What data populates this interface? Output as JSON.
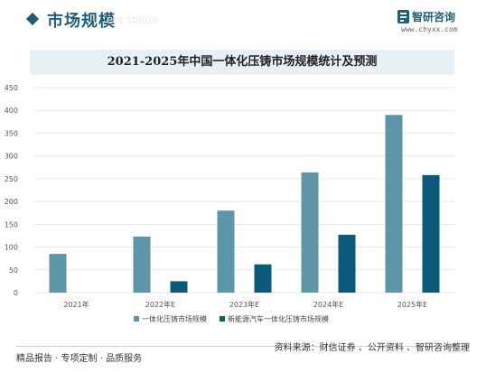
{
  "header": {
    "title": "市场规模",
    "ghost_text": "ent status",
    "logo_name": "智研咨询",
    "logo_url": "www.chyxx.com"
  },
  "colors": {
    "series1": "#5e95a9",
    "series2": "#0c5a7a",
    "title_bar": "#e9f0f3",
    "grid": "#e3e8eb",
    "axis_text": "#555555"
  },
  "chart_data": {
    "type": "bar",
    "title": "2021-2025年中国一体化压铸市场规模统计及预测",
    "categories": [
      "2021年",
      "2022年E",
      "2023年E",
      "2024年E",
      "2025年E"
    ],
    "series": [
      {
        "name": "一体化压铸市场规模",
        "values": [
          85,
          123,
          180,
          264,
          390
        ]
      },
      {
        "name": "新能源汽车一体化压铸市场规模",
        "values": [
          null,
          25,
          62,
          127,
          258
        ]
      }
    ],
    "ylim": [
      0,
      450
    ],
    "yticks": [
      0,
      50,
      100,
      150,
      200,
      250,
      300,
      350,
      400,
      450
    ],
    "grid": true,
    "legend_position": "bottom"
  },
  "footer": {
    "left": "精品报告 · 专项定制 · 品质服务",
    "right": "资料来源：财信证券 、公开资料 、智研咨询整理"
  }
}
